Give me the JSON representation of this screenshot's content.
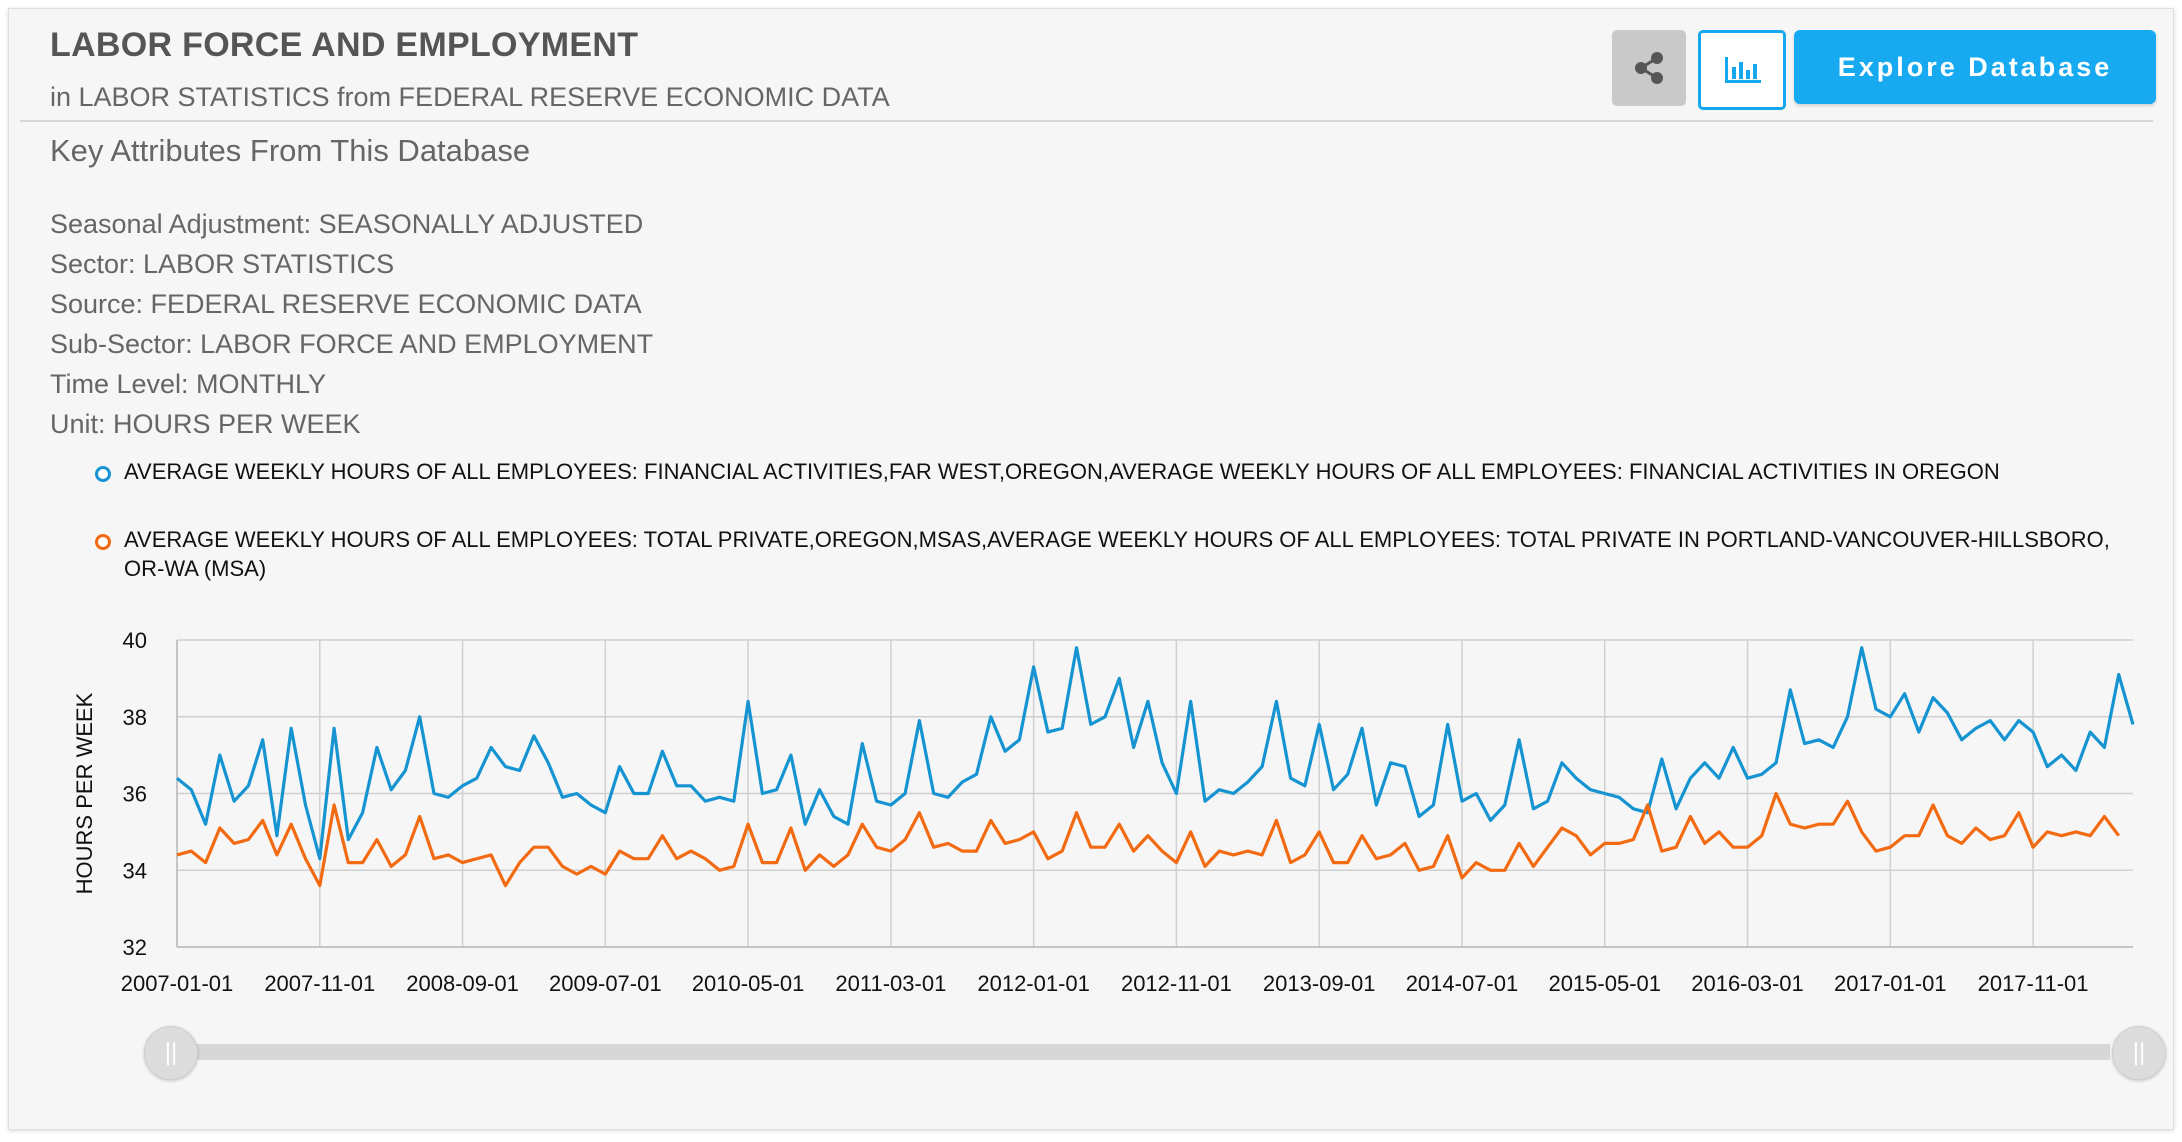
{
  "header": {
    "title": "LABOR FORCE AND EMPLOYMENT",
    "subtitle": "in LABOR STATISTICS from FEDERAL RESERVE ECONOMIC DATA",
    "explore_label": "Explore Database",
    "share_icon": "share-icon",
    "chart_icon": "bar-chart-icon"
  },
  "section": {
    "title": "Key Attributes From This Database",
    "attributes": [
      "Seasonal Adjustment: SEASONALLY ADJUSTED",
      "Sector: LABOR STATISTICS",
      "Source: FEDERAL RESERVE ECONOMIC DATA",
      "Sub-Sector: LABOR FORCE AND EMPLOYMENT",
      "Time Level: MONTHLY",
      "Unit: HOURS PER WEEK"
    ]
  },
  "colors": {
    "accent": "#17aaf1",
    "series_blue": "#1594d1",
    "series_orange": "#f26a12"
  },
  "chart_data": {
    "type": "line",
    "ylabel": "HOURS PER WEEK",
    "xlabel": "",
    "ylim": [
      32,
      40
    ],
    "yticks": [
      32,
      34,
      36,
      38,
      40
    ],
    "grid": true,
    "legend_position": "top-left",
    "x_start": "2007-01",
    "x_frequency": "monthly",
    "xticks": [
      "2007-01-01",
      "2007-11-01",
      "2008-09-01",
      "2009-07-01",
      "2010-05-01",
      "2011-03-01",
      "2012-01-01",
      "2012-11-01",
      "2013-09-01",
      "2014-07-01",
      "2015-05-01",
      "2016-03-01",
      "2017-01-01",
      "2017-11-01"
    ],
    "series": [
      {
        "name": "AVERAGE WEEKLY HOURS OF ALL EMPLOYEES: FINANCIAL ACTIVITIES,FAR WEST,OREGON,AVERAGE WEEKLY HOURS OF ALL EMPLOYEES: FINANCIAL ACTIVITIES IN OREGON",
        "color": "#1594d1",
        "values": [
          36.4,
          36.1,
          35.2,
          37.0,
          35.8,
          36.2,
          37.4,
          34.9,
          37.7,
          35.7,
          34.3,
          37.7,
          34.8,
          35.5,
          37.2,
          36.1,
          36.6,
          38.0,
          36.0,
          35.9,
          36.2,
          36.4,
          37.2,
          36.7,
          36.6,
          37.5,
          36.8,
          35.9,
          36.0,
          35.7,
          35.5,
          36.7,
          36.0,
          36.0,
          37.1,
          36.2,
          36.2,
          35.8,
          35.9,
          35.8,
          38.4,
          36.0,
          36.1,
          37.0,
          35.2,
          36.1,
          35.4,
          35.2,
          37.3,
          35.8,
          35.7,
          36.0,
          37.9,
          36.0,
          35.9,
          36.3,
          36.5,
          38.0,
          37.1,
          37.4,
          39.3,
          37.6,
          37.7,
          39.8,
          37.8,
          38.0,
          39.0,
          37.2,
          38.4,
          36.8,
          36.0,
          38.4,
          35.8,
          36.1,
          36.0,
          36.3,
          36.7,
          38.4,
          36.4,
          36.2,
          37.8,
          36.1,
          36.5,
          37.7,
          35.7,
          36.8,
          36.7,
          35.4,
          35.7,
          37.8,
          35.8,
          36.0,
          35.3,
          35.7,
          37.4,
          35.6,
          35.8,
          36.8,
          36.4,
          36.1,
          36.0,
          35.9,
          35.6,
          35.5,
          36.9,
          35.6,
          36.4,
          36.8,
          36.4,
          37.2,
          36.4,
          36.5,
          36.8,
          38.7,
          37.3,
          37.4,
          37.2,
          38.0,
          39.8,
          38.2,
          38.0,
          38.6,
          37.6,
          38.5,
          38.1,
          37.4,
          37.7,
          37.9,
          37.4,
          37.9,
          37.6,
          36.7,
          37.0,
          36.6,
          37.6,
          37.2,
          39.1,
          37.8
        ]
      },
      {
        "name": "AVERAGE WEEKLY HOURS OF ALL EMPLOYEES: TOTAL PRIVATE,OREGON,MSAS,AVERAGE WEEKLY HOURS OF ALL EMPLOYEES: TOTAL PRIVATE IN PORTLAND-VANCOUVER-HILLSBORO, OR-WA (MSA)",
        "color": "#f26a12",
        "values": [
          34.4,
          34.5,
          34.2,
          35.1,
          34.7,
          34.8,
          35.3,
          34.4,
          35.2,
          34.3,
          33.6,
          35.7,
          34.2,
          34.2,
          34.8,
          34.1,
          34.4,
          35.4,
          34.3,
          34.4,
          34.2,
          34.3,
          34.4,
          33.6,
          34.2,
          34.6,
          34.6,
          34.1,
          33.9,
          34.1,
          33.9,
          34.5,
          34.3,
          34.3,
          34.9,
          34.3,
          34.5,
          34.3,
          34.0,
          34.1,
          35.2,
          34.2,
          34.2,
          35.1,
          34.0,
          34.4,
          34.1,
          34.4,
          35.2,
          34.6,
          34.5,
          34.8,
          35.5,
          34.6,
          34.7,
          34.5,
          34.5,
          35.3,
          34.7,
          34.8,
          35.0,
          34.3,
          34.5,
          35.5,
          34.6,
          34.6,
          35.2,
          34.5,
          34.9,
          34.5,
          34.2,
          35.0,
          34.1,
          34.5,
          34.4,
          34.5,
          34.4,
          35.3,
          34.2,
          34.4,
          35.0,
          34.2,
          34.2,
          34.9,
          34.3,
          34.4,
          34.7,
          34.0,
          34.1,
          34.9,
          33.8,
          34.2,
          34.0,
          34.0,
          34.7,
          34.1,
          34.6,
          35.1,
          34.9,
          34.4,
          34.7,
          34.7,
          34.8,
          35.7,
          34.5,
          34.6,
          35.4,
          34.7,
          35.0,
          34.6,
          34.6,
          34.9,
          36.0,
          35.2,
          35.1,
          35.2,
          35.2,
          35.8,
          35.0,
          34.5,
          34.6,
          34.9,
          34.9,
          35.7,
          34.9,
          34.7,
          35.1,
          34.8,
          34.9,
          35.5,
          34.6,
          35.0,
          34.9,
          35.0,
          34.9,
          35.4,
          34.9
        ]
      }
    ]
  }
}
